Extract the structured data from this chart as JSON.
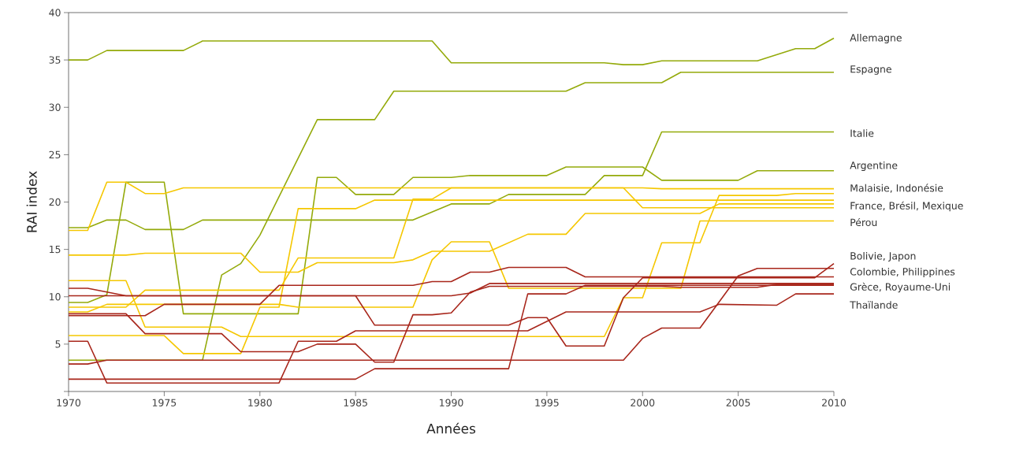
{
  "chart_data": {
    "type": "line",
    "xlabel": "Années",
    "ylabel": "RAI index",
    "xlim": [
      1970,
      2010
    ],
    "xticks": [
      1970,
      1975,
      1980,
      1985,
      1990,
      1995,
      2000,
      2005,
      2010
    ],
    "ylim": [
      0,
      40
    ],
    "yticks": [
      {
        "value": 0,
        "label": null
      },
      5,
      10,
      15,
      20,
      25,
      30,
      35,
      40
    ],
    "grid": false,
    "series": [
      {
        "color": "#94aa0a",
        "x": [
          1970,
          1971,
          1972,
          1976,
          1977,
          1989,
          1990,
          1998,
          1999,
          2000,
          2001,
          2006,
          2008,
          2009,
          2010
        ],
        "values": [
          35,
          35,
          36,
          36,
          37,
          37,
          34.7,
          34.7,
          34.5,
          34.5,
          34.9,
          34.9,
          36.2,
          36.2,
          37.3
        ]
      },
      {
        "color": "#94aa0a",
        "x": [
          1970,
          1977,
          1978,
          1979,
          1980,
          1983,
          1986,
          1987,
          1996,
          1997,
          2001,
          2002,
          2010
        ],
        "values": [
          3.3,
          3.3,
          12.3,
          13.5,
          16.5,
          28.7,
          28.7,
          31.7,
          31.7,
          32.6,
          32.6,
          33.7,
          33.7
        ]
      },
      {
        "color": "#94aa0a",
        "x": [
          1970,
          1971,
          1972,
          1973,
          1974,
          1976,
          1977,
          1988,
          1990,
          1992,
          1993,
          1997,
          1998,
          2000,
          2001,
          2010
        ],
        "values": [
          17.3,
          17.3,
          18.1,
          18.1,
          17.1,
          17.1,
          18.1,
          18.1,
          19.8,
          19.8,
          20.8,
          20.8,
          22.8,
          22.8,
          27.4,
          27.4
        ]
      },
      {
        "color": "#94aa0a",
        "x": [
          1970,
          1971,
          1972,
          1973,
          1975,
          1976,
          1982,
          1983,
          1984,
          1985,
          1987,
          1988,
          1990,
          1991,
          1995,
          1996,
          2000,
          2001,
          2005,
          2006,
          2010
        ],
        "values": [
          9.4,
          9.4,
          10.2,
          22.1,
          22.1,
          8.2,
          8.2,
          22.6,
          22.6,
          20.8,
          20.8,
          22.6,
          22.6,
          22.8,
          22.8,
          23.7,
          23.7,
          22.3,
          22.3,
          23.3,
          23.3
        ]
      },
      {
        "color": "#f5c700",
        "x": [
          1970,
          1971,
          1972,
          1973,
          1974,
          1975,
          1976,
          2000,
          2001,
          2010
        ],
        "values": [
          17,
          17,
          22.1,
          22.1,
          20.9,
          20.9,
          21.5,
          21.5,
          21.4,
          21.4
        ]
      },
      {
        "color": "#f5c700",
        "x": [
          1970,
          1973,
          1974,
          1981,
          1982,
          1987,
          1988,
          1989,
          1990,
          1999,
          2000,
          2010
        ],
        "values": [
          8.9,
          8.9,
          10.7,
          10.7,
          14.1,
          14.1,
          20.3,
          20.3,
          21.5,
          21.5,
          19.4,
          19.4
        ]
      },
      {
        "color": "#f5c700",
        "x": [
          1970,
          1973,
          1974,
          1978,
          1979,
          1998,
          1999,
          2000,
          2001,
          2003,
          2004,
          2007,
          2008,
          2010
        ],
        "values": [
          11.7,
          11.7,
          6.8,
          6.8,
          5.8,
          5.8,
          9.9,
          9.9,
          15.7,
          15.7,
          20.7,
          20.7,
          20.9,
          20.9
        ]
      },
      {
        "color": "#f5c700",
        "x": [
          1970,
          1975,
          1976,
          1979,
          1980,
          1981,
          1982,
          1985,
          1986,
          2010
        ],
        "values": [
          5.9,
          5.9,
          4,
          4,
          8.9,
          8.9,
          19.3,
          19.3,
          20.2,
          20.2
        ]
      },
      {
        "color": "#f5c700",
        "x": [
          1970,
          1973,
          1974,
          1979,
          1980,
          1982,
          1983,
          1987,
          1988,
          1989,
          1992,
          1994,
          1996,
          1997,
          2003,
          2004,
          2010
        ],
        "values": [
          14.4,
          14.4,
          14.6,
          14.6,
          12.6,
          12.6,
          13.6,
          13.6,
          13.9,
          14.8,
          14.8,
          16.6,
          16.6,
          18.8,
          18.8,
          19.8,
          19.8
        ]
      },
      {
        "color": "#f5c700",
        "x": [
          1970,
          1971,
          1972,
          1981,
          1982,
          1988,
          1989,
          1990,
          1992,
          1993,
          2002,
          2003,
          2010
        ],
        "values": [
          8.4,
          8.4,
          9.2,
          9.2,
          8.9,
          8.9,
          13.9,
          15.8,
          15.8,
          10.9,
          10.9,
          18,
          18
        ]
      },
      {
        "color": "#a8261b",
        "x": [
          1970,
          1971,
          1973,
          1985,
          1986,
          1993,
          1994,
          1995,
          1996,
          1998,
          1999,
          2000,
          2009,
          2010
        ],
        "values": [
          10.9,
          10.9,
          10.1,
          10.1,
          7,
          7,
          7.8,
          7.8,
          4.8,
          4.8,
          9.9,
          12,
          12,
          13.5
        ]
      },
      {
        "color": "#a8261b",
        "x": [
          1970,
          1990,
          1991,
          1992,
          2010
        ],
        "values": [
          10.1,
          10.1,
          10.4,
          11.4,
          11.4
        ]
      },
      {
        "color": "#a8261b",
        "x": [
          1970,
          1974,
          1975,
          1980,
          1981,
          1988,
          1989,
          1990,
          1991,
          1992,
          1993,
          1996,
          1997,
          2010
        ],
        "values": [
          8,
          8,
          9.2,
          9.2,
          11.2,
          11.2,
          11.6,
          11.6,
          12.6,
          12.6,
          13.1,
          13.1,
          12.1,
          12.1
        ]
      },
      {
        "color": "#a8261b",
        "x": [
          1970,
          1973,
          1974,
          1978,
          1979,
          1982,
          1983,
          1985,
          1986,
          1987,
          1988,
          1989,
          1990,
          1991,
          1992,
          2001,
          2002,
          2006,
          2007,
          2010
        ],
        "values": [
          8.2,
          8.2,
          6.1,
          6.1,
          4.2,
          4.2,
          5,
          5,
          3.1,
          3.1,
          8.1,
          8.1,
          8.3,
          10.5,
          11.1,
          11.1,
          11,
          11,
          11.3,
          11.3
        ]
      },
      {
        "color": "#a8261b",
        "x": [
          1970,
          1971,
          1972,
          1999,
          2000,
          2001,
          2003,
          2005,
          2006,
          2010
        ],
        "values": [
          2.9,
          2.9,
          3.3,
          3.3,
          5.6,
          6.7,
          6.7,
          12.2,
          13,
          13
        ]
      },
      {
        "color": "#a8261b",
        "x": [
          1970,
          1971,
          1972,
          1981,
          1982,
          1984,
          1985,
          1994,
          1996,
          2003,
          2004,
          2007,
          2008,
          2010
        ],
        "values": [
          5.3,
          5.3,
          0.9,
          0.9,
          5.3,
          5.3,
          6.4,
          6.4,
          8.4,
          8.4,
          9.2,
          9.1,
          10.3,
          10.3
        ]
      },
      {
        "color": "#a8261b",
        "x": [
          1970,
          1985,
          1986,
          1993,
          1994,
          1996,
          1997,
          2010
        ],
        "values": [
          1.3,
          1.3,
          2.4,
          2.4,
          10.3,
          10.3,
          11.2,
          11.2
        ]
      }
    ],
    "annotations": [
      "Allemagne",
      "Espagne",
      "Italie",
      "Argentine",
      "Malaisie, Indonésie",
      "France, Brésil, Mexique",
      "Pérou",
      "Bolivie, Japon",
      "Colombie, Philippines",
      "Grèce, Royaume-Uni",
      "Thaïlande"
    ]
  }
}
